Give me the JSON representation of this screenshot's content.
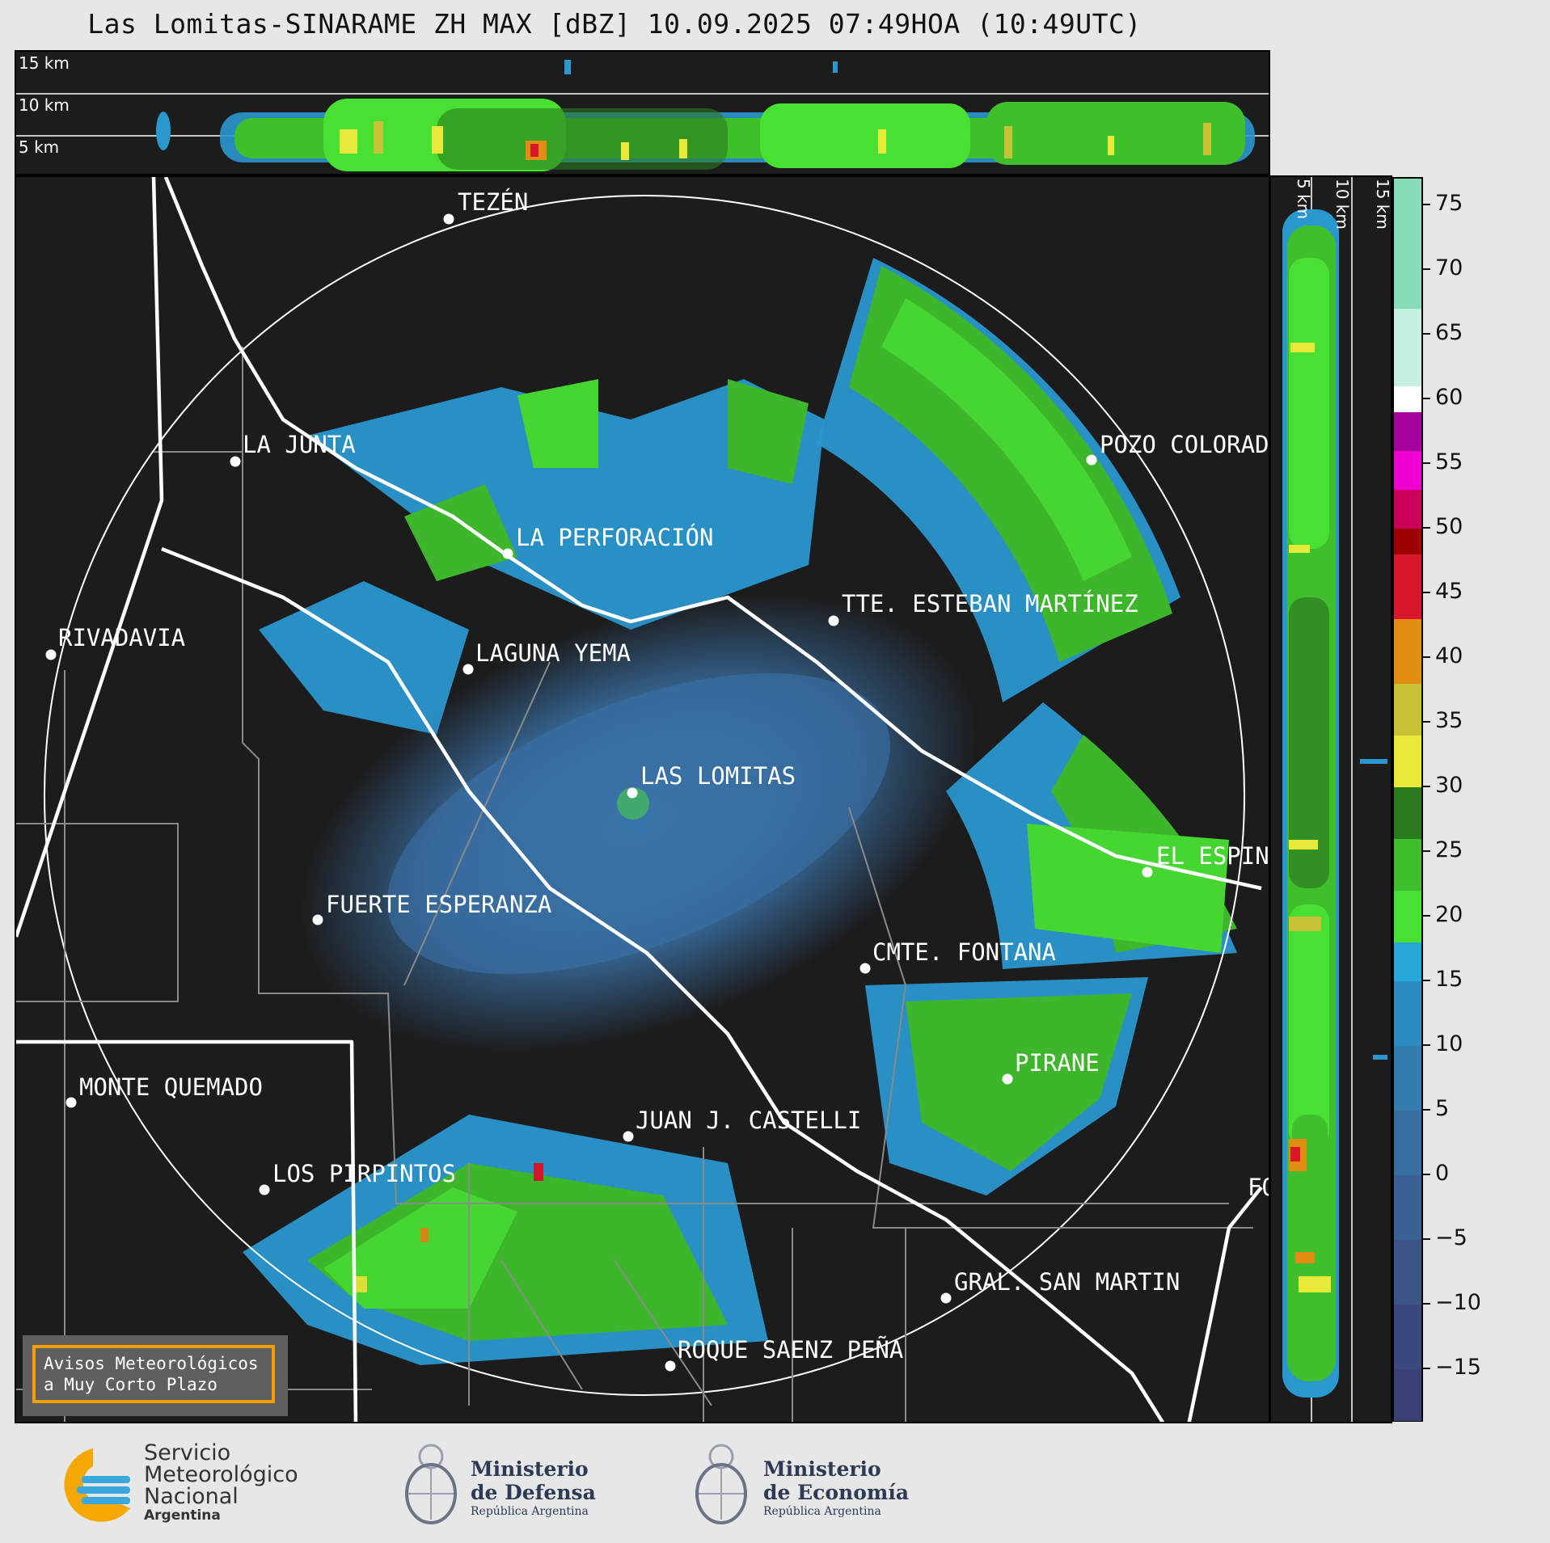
{
  "title": "Las Lomitas-SINARAME ZH MAX [dBZ] 10.09.2025 07:49HOA (10:49UTC)",
  "top_panel": {
    "km_labels": [
      "15 km",
      "10 km",
      "5 km"
    ]
  },
  "side_panel": {
    "km_labels": [
      "5 km",
      "10 km",
      "15 km"
    ]
  },
  "colorbar": {
    "ticks": [
      "75",
      "70",
      "65",
      "60",
      "55",
      "50",
      "45",
      "40",
      "35",
      "30",
      "25",
      "20",
      "15",
      "10",
      "5",
      "0",
      "−5",
      "−10",
      "−15"
    ],
    "min": -19,
    "max": 77,
    "bands": [
      {
        "from": -19,
        "to": -15,
        "color": "#3a3f74"
      },
      {
        "from": -15,
        "to": -10,
        "color": "#3b4a7e"
      },
      {
        "from": -10,
        "to": -5,
        "color": "#3b5588"
      },
      {
        "from": -5,
        "to": 0,
        "color": "#3a6194"
      },
      {
        "from": 0,
        "to": 5,
        "color": "#386d9f"
      },
      {
        "from": 5,
        "to": 10,
        "color": "#337cae"
      },
      {
        "from": 10,
        "to": 15,
        "color": "#2c8cc0"
      },
      {
        "from": 15,
        "to": 18,
        "color": "#27a7d8"
      },
      {
        "from": 18,
        "to": 22,
        "color": "#48e033"
      },
      {
        "from": 22,
        "to": 26,
        "color": "#3fbf2c"
      },
      {
        "from": 26,
        "to": 30,
        "color": "#2c7a1f"
      },
      {
        "from": 30,
        "to": 34,
        "color": "#e9e93a"
      },
      {
        "from": 34,
        "to": 38,
        "color": "#c8c334"
      },
      {
        "from": 38,
        "to": 43,
        "color": "#e08d12"
      },
      {
        "from": 43,
        "to": 48,
        "color": "#d9162b"
      },
      {
        "from": 48,
        "to": 50,
        "color": "#9e0000"
      },
      {
        "from": 50,
        "to": 53,
        "color": "#c8005a"
      },
      {
        "from": 53,
        "to": 56,
        "color": "#f000d0"
      },
      {
        "from": 56,
        "to": 59,
        "color": "#a4009e"
      },
      {
        "from": 59,
        "to": 61,
        "color": "#ffffff"
      },
      {
        "from": 61,
        "to": 67,
        "color": "#c6efdd"
      },
      {
        "from": 67,
        "to": 77,
        "color": "#86dcb6"
      }
    ]
  },
  "cities": [
    {
      "name": "TEZÉN"
    },
    {
      "name": "LA JUNTA"
    },
    {
      "name": "POZO COLORADO"
    },
    {
      "name": "LA PERFORACIÓN"
    },
    {
      "name": "TTE. ESTEBAN MARTÍNEZ"
    },
    {
      "name": "RIVADAVIA"
    },
    {
      "name": "LAGUNA YEMA"
    },
    {
      "name": "LAS LOMITAS"
    },
    {
      "name": "EL ESPINILLO"
    },
    {
      "name": "FUERTE ESPERANZA"
    },
    {
      "name": "CMTE. FONTANA"
    },
    {
      "name": "PIRANE"
    },
    {
      "name": "MONTE QUEMADO"
    },
    {
      "name": "JUAN J. CASTELLI"
    },
    {
      "name": "LOS PIRPINTOS"
    },
    {
      "name": "GRAL. SAN MARTIN"
    },
    {
      "name": "ROQUE SAENZ PEÑA"
    },
    {
      "name": "FORMOSA"
    }
  ],
  "avisos": {
    "line1": "Avisos Meteorológicos",
    "line2": "a Muy Corto Plazo"
  },
  "logos": {
    "smn": {
      "line1": "Servicio",
      "line2": "Meteorológico",
      "line3": "Nacional",
      "line4": "Argentina"
    },
    "defensa": {
      "line1": "Ministerio",
      "line2": "de Defensa",
      "line3": "República Argentina"
    },
    "economia": {
      "line1": "Ministerio",
      "line2": "de Economía",
      "line3": "República Argentina"
    }
  }
}
